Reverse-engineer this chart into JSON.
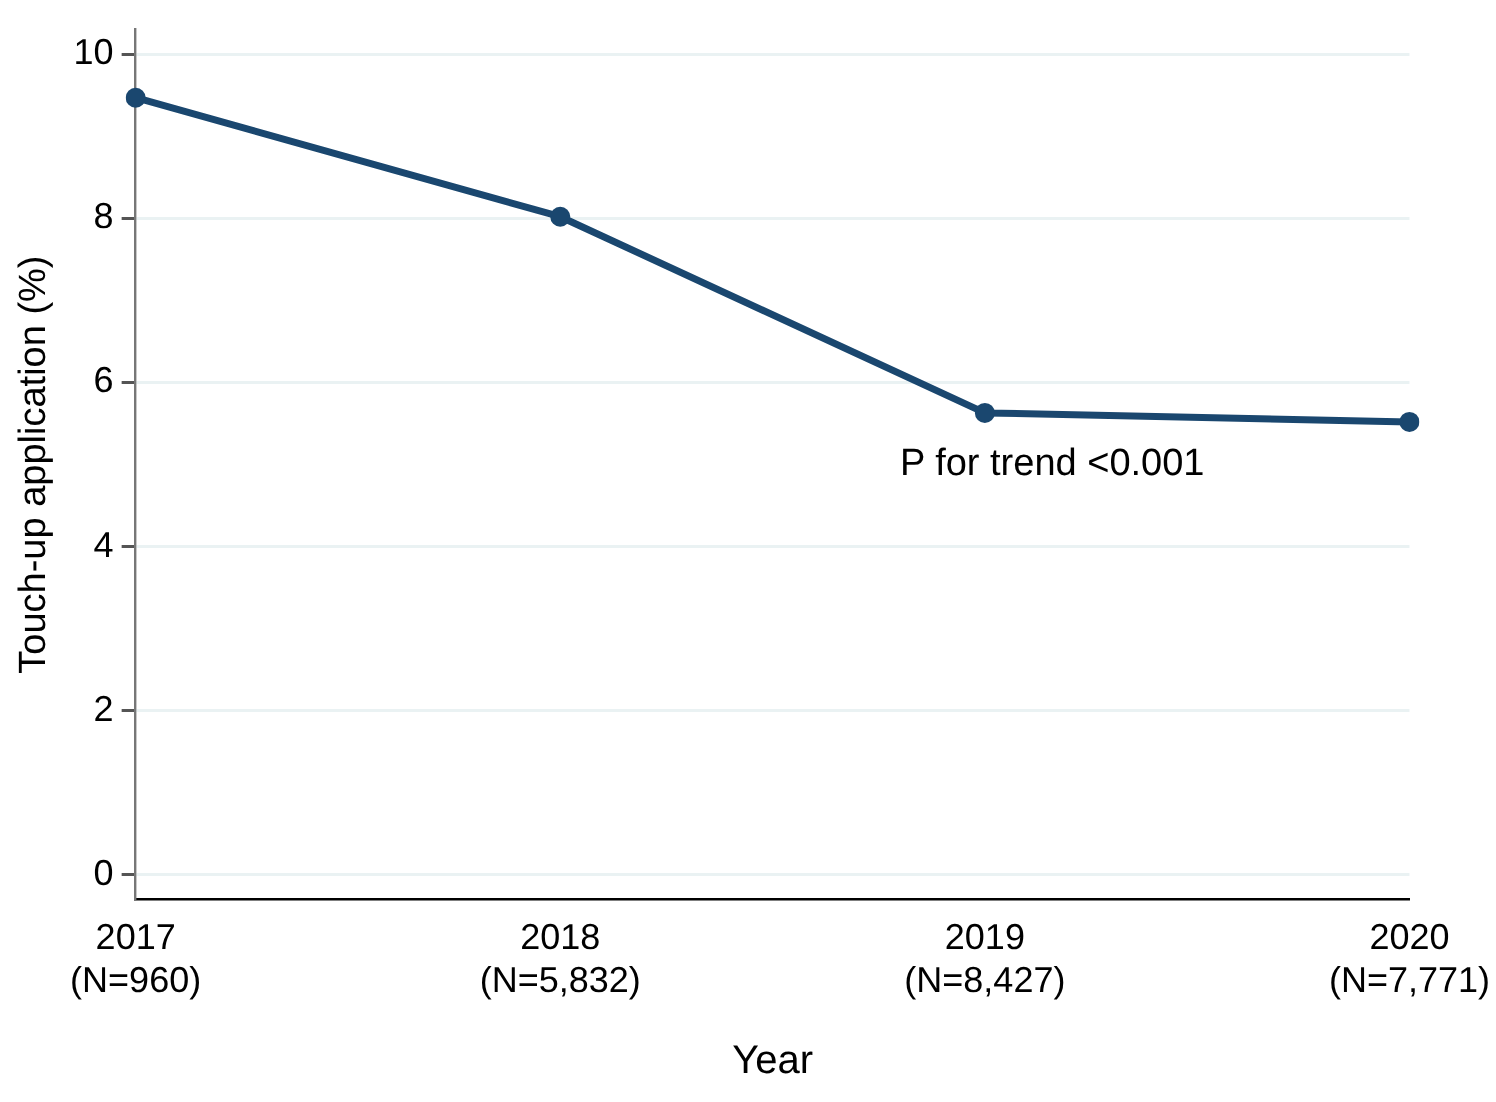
{
  "chart_data": {
    "type": "line",
    "xlabel": "Year",
    "ylabel": "Touch-up application (%)",
    "categories": [
      "2017\n(N=960)",
      "2018\n(N=5,832)",
      "2019\n(N=8,427)",
      "2020\n(N=7,771)"
    ],
    "series": [
      {
        "color": "#1a476f",
        "values": [
          9.47,
          8.02,
          5.63,
          5.52
        ]
      }
    ],
    "ylim": [
      -0.3,
      10.3
    ],
    "yticks": [
      0,
      2,
      4,
      6,
      8,
      10
    ],
    "grid": "y",
    "marker": "circle",
    "line_style": "solid",
    "legend": false,
    "annotations": [
      "P for trend <0.001"
    ]
  }
}
